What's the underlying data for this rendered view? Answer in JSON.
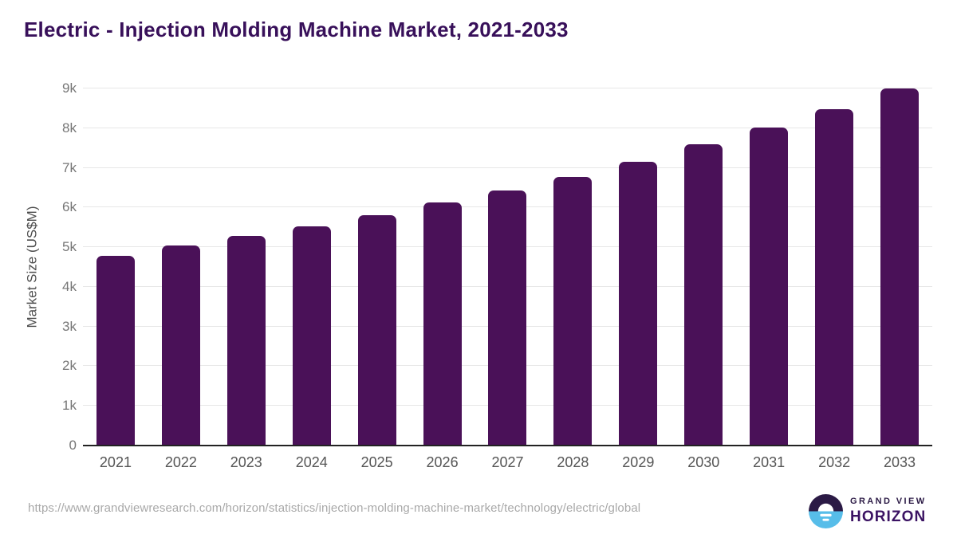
{
  "page": {
    "title": "Electric - Injection Molding Machine Market, 2021-2033"
  },
  "chart_data": {
    "type": "bar",
    "title": "Electric - Injection Molding Machine Market, 2021-2033",
    "categories": [
      "2021",
      "2022",
      "2023",
      "2024",
      "2025",
      "2026",
      "2027",
      "2028",
      "2029",
      "2030",
      "2031",
      "2032",
      "2033"
    ],
    "values": [
      4780,
      5050,
      5280,
      5530,
      5800,
      6120,
      6420,
      6780,
      7160,
      7590,
      8020,
      8480,
      9000
    ],
    "xlabel": "",
    "ylabel": "Market Size (US$M)",
    "ylim": [
      0,
      9000
    ],
    "yticks": {
      "labels": [
        "0",
        "1k",
        "2k",
        "3k",
        "4k",
        "5k",
        "6k",
        "7k",
        "8k",
        "9k"
      ],
      "values": [
        0,
        1000,
        2000,
        3000,
        4000,
        5000,
        6000,
        7000,
        8000,
        9000
      ]
    },
    "grid": "horizontal",
    "legend_position": "none",
    "bar_color": "#4a1158",
    "gridline_color": "#e7e7e7",
    "axis_line_color": "#222222"
  },
  "footer": {
    "source_url": "https://www.grandviewresearch.com/horizon/statistics/injection-molding-machine-market/technology/electric/global",
    "logo": {
      "mark_icon": "horizon-sun-icon",
      "brand_top": "GRAND VIEW",
      "brand_bottom": "HORIZON",
      "mark_dark_color": "#2b1a45",
      "mark_blue_color": "#57bde9"
    }
  },
  "colors": {
    "title_text": "#38105a",
    "y_tick_text": "#767676",
    "x_tick_text": "#555555",
    "axis_title_text": "#4d4d4d",
    "url_text": "#a9a9a9",
    "background": "#ffffff"
  }
}
